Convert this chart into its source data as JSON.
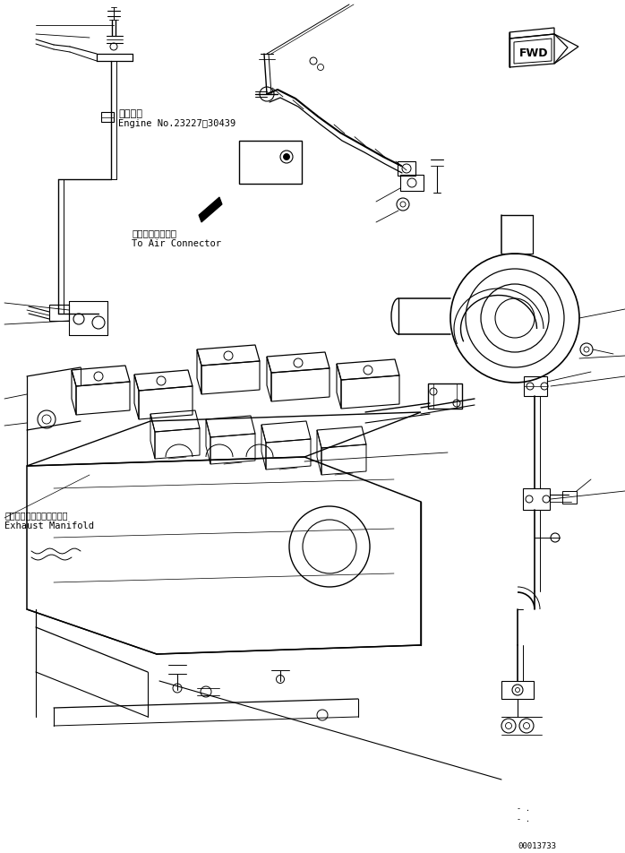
{
  "bg_color": "#ffffff",
  "line_color": "#000000",
  "fig_width": 6.98,
  "fig_height": 9.52,
  "dpi": 100,
  "doc_number": "00013733",
  "fwd_text": "FWD",
  "label1_jp": "適用号機",
  "label1_en": "Engine No.23227〜30439",
  "label2_jp": "エアーコネクタへ",
  "label2_en": "To Air Connector",
  "label3_jp": "エキゾーストマニホールド",
  "label3_en": "Exhaust Manifold",
  "border_lw": 1.0,
  "thin_lw": 0.6,
  "med_lw": 0.8,
  "pipe_lw": 1.2
}
